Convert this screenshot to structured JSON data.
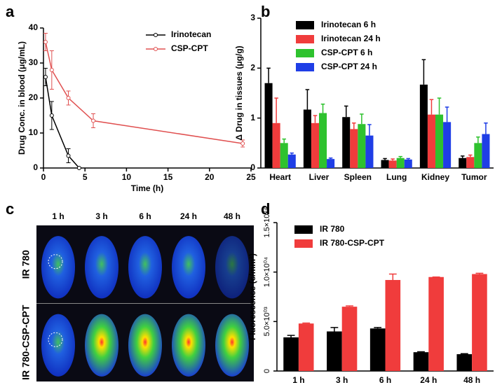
{
  "chart_data": [
    {
      "type": "line",
      "panel": "a",
      "xlabel": "Time (h)",
      "ylabel": "Drug Conc. in blood (μg/mL)",
      "xlim": [
        0,
        25
      ],
      "xticks": [
        0,
        5,
        10,
        15,
        20,
        25
      ],
      "ylim": [
        0,
        40
      ],
      "yticks": [
        0,
        10,
        20,
        30,
        40
      ],
      "legend": "upper right",
      "series": [
        {
          "name": "Irinotecan",
          "color": "#000000",
          "x": [
            0.25,
            1,
            3,
            4.3
          ],
          "values": [
            26,
            15,
            3.5,
            0
          ],
          "errors": [
            2.5,
            4,
            2,
            0
          ]
        },
        {
          "name": "CSP-CPT",
          "color": "#e05050",
          "x": [
            0.25,
            1,
            3,
            6,
            24
          ],
          "values": [
            36,
            28,
            20,
            13.5,
            7
          ],
          "errors": [
            2.5,
            5.5,
            2,
            2,
            1
          ]
        }
      ]
    },
    {
      "type": "bar",
      "panel": "b",
      "ylabel": "Δ Drug in tissues (μg/g)",
      "categories": [
        "Heart",
        "Liver",
        "Spleen",
        "Lung",
        "Kidney",
        "Tumor"
      ],
      "ylim": [
        0,
        3
      ],
      "yticks": [
        0,
        1,
        2,
        3
      ],
      "legend": "upper left",
      "series": [
        {
          "name": "Irinotecan 6 h",
          "color": "#000000",
          "values": [
            1.7,
            1.17,
            1.02,
            0.16,
            1.67,
            0.2
          ],
          "errors": [
            0.3,
            0.4,
            0.22,
            0.03,
            0.5,
            0.04
          ]
        },
        {
          "name": "Irinotecan 24 h",
          "color": "#f03c3c",
          "values": [
            0.9,
            0.9,
            0.78,
            0.15,
            1.07,
            0.22
          ],
          "errors": [
            0.5,
            0.15,
            0.12,
            0.03,
            0.3,
            0.04
          ]
        },
        {
          "name": "CSP-CPT 6 h",
          "color": "#2ec22e",
          "values": [
            0.5,
            1.1,
            0.88,
            0.2,
            1.07,
            0.5
          ],
          "errors": [
            0.08,
            0.18,
            0.2,
            0.03,
            0.33,
            0.12
          ]
        },
        {
          "name": "CSP-CPT 24 h",
          "color": "#1f3ee6",
          "values": [
            0.27,
            0.18,
            0.65,
            0.17,
            0.92,
            0.68
          ],
          "errors": [
            0.03,
            0.02,
            0.22,
            0.02,
            0.3,
            0.22
          ]
        }
      ]
    },
    {
      "type": "image",
      "panel": "c",
      "columns": [
        "1 h",
        "3 h",
        "6 h",
        "24 h",
        "48 h"
      ],
      "rows": [
        "IR 780",
        "IR 780-CSP-CPT"
      ]
    },
    {
      "type": "bar",
      "panel": "d",
      "ylabel": "Fluorescence (c/mm²)",
      "categories": [
        "1 h",
        "3 h",
        "6 h",
        "24 h",
        "48 h"
      ],
      "ylim": [
        0,
        15000
      ],
      "yticks": [
        0,
        {
          "value": 5000,
          "label": "5.0×10⁰³"
        },
        {
          "value": 10000,
          "label": "1.0×10⁰⁴"
        },
        {
          "value": 15000,
          "label": "1.5×10⁰⁴"
        }
      ],
      "legend": "upper left",
      "series": [
        {
          "name": "IR 780",
          "color": "#000000",
          "values": [
            3400,
            4000,
            4300,
            1900,
            1700
          ],
          "errors": [
            200,
            400,
            100,
            50,
            50
          ]
        },
        {
          "name": "IR 780-CSP-CPT",
          "color": "#f03c3c",
          "values": [
            4800,
            6500,
            9200,
            9500,
            9800
          ],
          "errors": [
            50,
            80,
            600,
            0,
            80
          ]
        }
      ]
    }
  ]
}
